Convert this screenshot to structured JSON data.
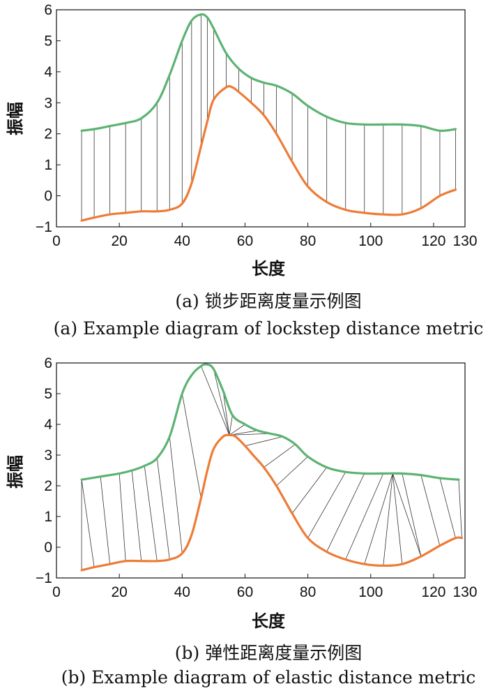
{
  "colors": {
    "series_a": "#5cb372",
    "series_b": "#ee7b36",
    "link": "#333333",
    "axis": "#111111"
  },
  "chart_data": [
    {
      "type": "line",
      "xlabel": "长度",
      "ylabel": "振幅",
      "xlim": [
        0,
        130
      ],
      "ylim": [
        -1,
        6
      ],
      "xticks": [
        0,
        20,
        40,
        60,
        80,
        100,
        120,
        130
      ],
      "yticks": [
        -1,
        0,
        1,
        2,
        3,
        4,
        5,
        6
      ],
      "caption_cn": "(a) 锁步距离度量示例图",
      "caption_en": "(a) Example diagram of lockstep distance metric",
      "alignment": "lockstep",
      "series": [
        {
          "x": [
            8,
            12,
            17,
            22,
            27,
            32,
            36,
            40,
            43,
            46,
            48,
            50,
            54,
            58,
            62,
            66,
            70,
            75,
            80,
            86,
            92,
            98,
            104,
            110,
            116,
            122,
            127
          ],
          "values": [
            2.1,
            2.15,
            2.25,
            2.35,
            2.5,
            3.0,
            3.9,
            5.0,
            5.65,
            5.85,
            5.75,
            5.4,
            4.6,
            4.1,
            3.8,
            3.65,
            3.55,
            3.3,
            2.9,
            2.55,
            2.35,
            2.3,
            2.3,
            2.3,
            2.25,
            2.1,
            2.15
          ]
        },
        {
          "x": [
            8,
            12,
            17,
            22,
            27,
            32,
            36,
            40,
            43,
            46,
            48,
            50,
            54,
            56,
            58,
            62,
            66,
            70,
            75,
            80,
            86,
            92,
            98,
            104,
            110,
            116,
            122,
            127
          ],
          "values": [
            -0.8,
            -0.7,
            -0.6,
            -0.55,
            -0.5,
            -0.5,
            -0.45,
            -0.25,
            0.4,
            1.6,
            2.4,
            3.1,
            3.5,
            3.5,
            3.35,
            3.0,
            2.6,
            2.0,
            1.1,
            0.3,
            -0.2,
            -0.45,
            -0.55,
            -0.6,
            -0.6,
            -0.4,
            0.0,
            0.2
          ]
        }
      ]
    },
    {
      "type": "line",
      "xlabel": "长度",
      "ylabel": "振幅",
      "xlim": [
        0,
        130
      ],
      "ylim": [
        -1,
        6
      ],
      "xticks": [
        0,
        20,
        40,
        60,
        80,
        100,
        120,
        130
      ],
      "yticks": [
        -1,
        0,
        1,
        2,
        3,
        4,
        5,
        6
      ],
      "caption_cn": "(b) 弹性距离度量示例图",
      "caption_en": "(b) Example diagram of elastic distance metric",
      "alignment": "elastic",
      "series": [
        {
          "x": [
            8,
            14,
            20,
            24,
            28,
            32,
            36,
            40,
            43,
            46,
            48,
            50,
            53,
            56,
            60,
            64,
            68,
            72,
            76,
            80,
            86,
            92,
            98,
            104,
            110,
            116,
            122,
            128
          ],
          "values": [
            2.2,
            2.3,
            2.4,
            2.5,
            2.65,
            2.9,
            3.6,
            5.0,
            5.6,
            5.9,
            5.95,
            5.8,
            5.1,
            4.3,
            4.0,
            3.8,
            3.7,
            3.6,
            3.35,
            2.95,
            2.6,
            2.45,
            2.4,
            2.4,
            2.4,
            2.35,
            2.25,
            2.2
          ]
        },
        {
          "x": [
            8,
            12,
            17,
            22,
            27,
            32,
            36,
            40,
            43,
            46,
            48,
            50,
            53,
            55,
            57,
            60,
            63,
            66,
            70,
            75,
            80,
            86,
            92,
            98,
            104,
            110,
            116,
            122,
            127,
            129
          ],
          "values": [
            -0.75,
            -0.65,
            -0.55,
            -0.45,
            -0.45,
            -0.45,
            -0.4,
            -0.2,
            0.4,
            1.6,
            2.5,
            3.2,
            3.6,
            3.65,
            3.6,
            3.3,
            2.95,
            2.6,
            2.0,
            1.1,
            0.3,
            -0.15,
            -0.4,
            -0.55,
            -0.6,
            -0.55,
            -0.3,
            0.05,
            0.3,
            0.3
          ]
        }
      ],
      "links": [
        [
          8,
          8
        ],
        [
          8,
          12
        ],
        [
          14,
          17
        ],
        [
          20,
          22
        ],
        [
          24,
          27
        ],
        [
          28,
          32
        ],
        [
          32,
          36
        ],
        [
          36,
          40
        ],
        [
          40,
          46
        ],
        [
          46,
          55
        ],
        [
          50,
          55
        ],
        [
          53,
          55
        ],
        [
          56,
          55
        ],
        [
          60,
          55
        ],
        [
          64,
          55
        ],
        [
          68,
          55
        ],
        [
          72,
          60
        ],
        [
          76,
          66
        ],
        [
          80,
          70
        ],
        [
          86,
          75
        ],
        [
          92,
          80
        ],
        [
          98,
          86
        ],
        [
          104,
          92
        ],
        [
          107,
          98
        ],
        [
          107,
          104
        ],
        [
          107,
          110
        ],
        [
          107,
          116
        ],
        [
          110,
          116
        ],
        [
          116,
          122
        ],
        [
          122,
          127
        ],
        [
          128,
          129
        ]
      ]
    }
  ]
}
